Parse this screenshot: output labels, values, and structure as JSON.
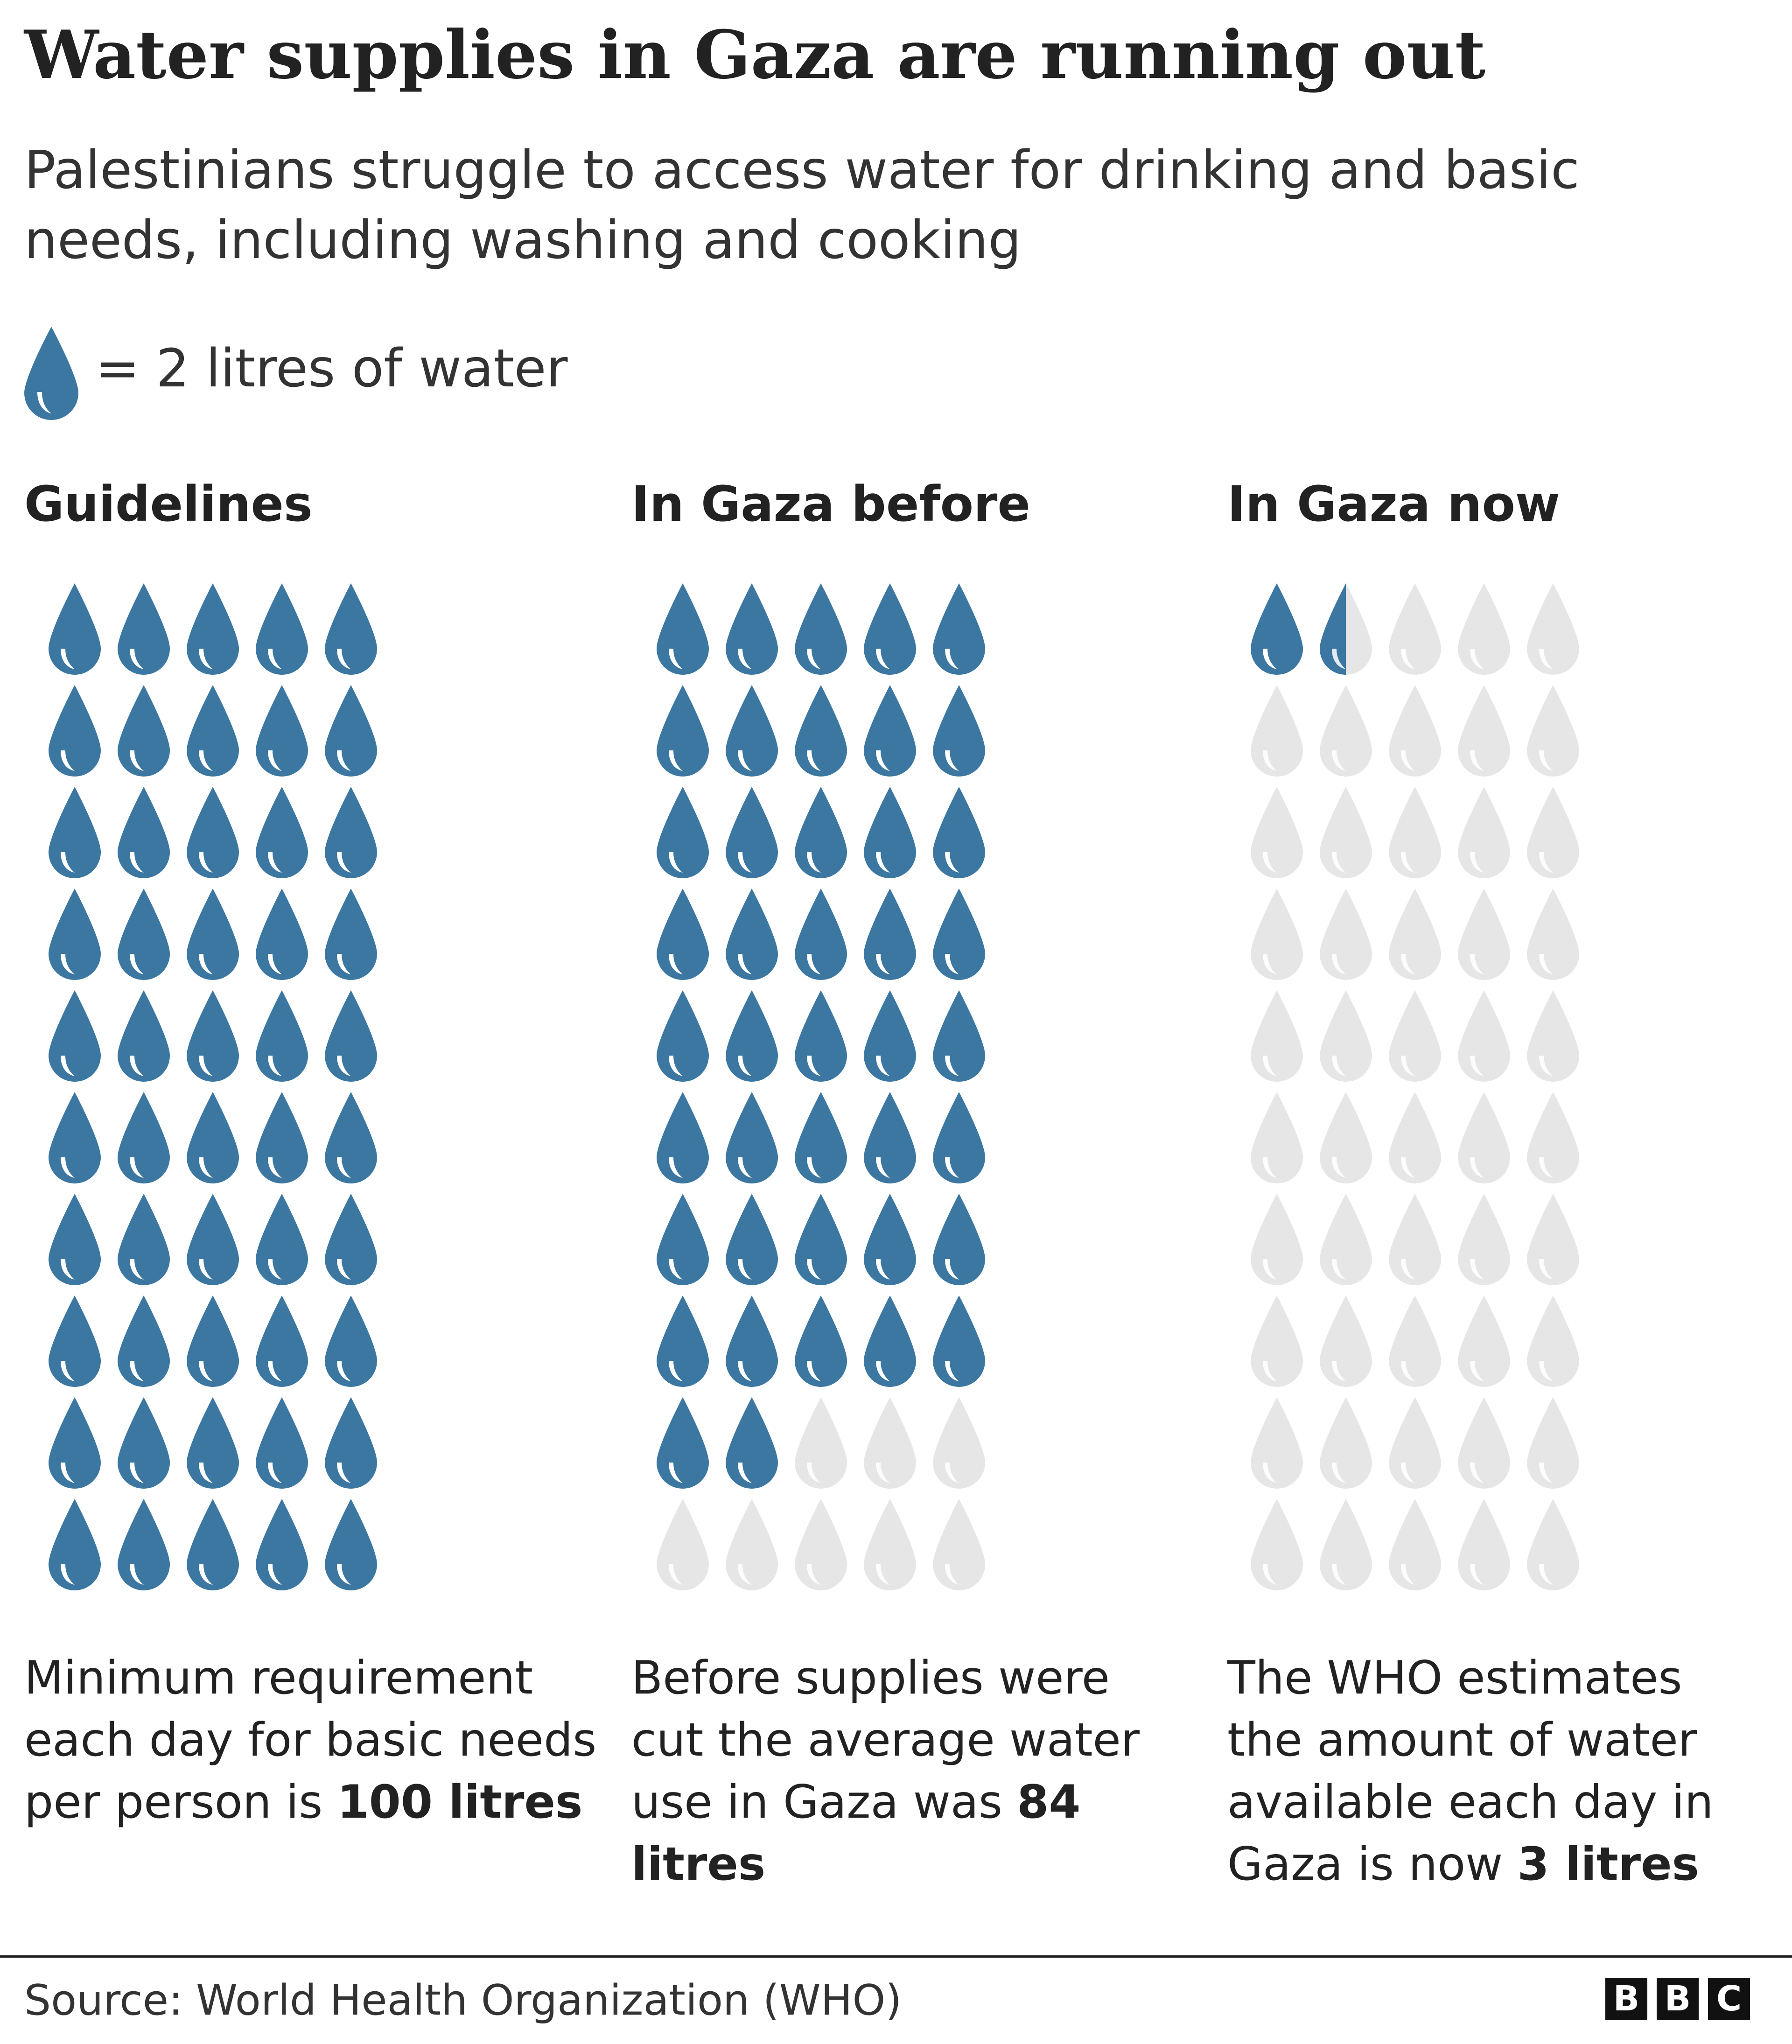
{
  "title": "Water supplies in Gaza are running out",
  "subtitle": "Palestinians struggle to access water for drinking and basic needs, including washing and cooking",
  "legend": {
    "icon": "water-drop-icon",
    "label": "= 2 litres of water"
  },
  "colors": {
    "filled": "#3b77a1",
    "empty": "#e6e6e6",
    "highlight": "#ffffff",
    "text": "#222222"
  },
  "chart_data": {
    "type": "pictogram",
    "unit": "litres",
    "unit_per_icon": 2,
    "grid": {
      "rows": 10,
      "cols": 5
    },
    "series": [
      {
        "name": "Guidelines",
        "value": 100,
        "description_prefix": "Minimum requirement each day for basic needs per person is ",
        "value_label": "100 litres"
      },
      {
        "name": "In Gaza before",
        "value": 84,
        "description_prefix": "Before supplies were cut the average water use in Gaza was ",
        "value_label": "84 litres"
      },
      {
        "name": "In Gaza now",
        "value": 3,
        "description_prefix": "The WHO estimates the amount of water available each day in Gaza is now ",
        "value_label": "3 litres"
      }
    ]
  },
  "footer": {
    "source": "Source: World Health Organization (WHO)",
    "logo_letters": [
      "B",
      "B",
      "C"
    ]
  }
}
